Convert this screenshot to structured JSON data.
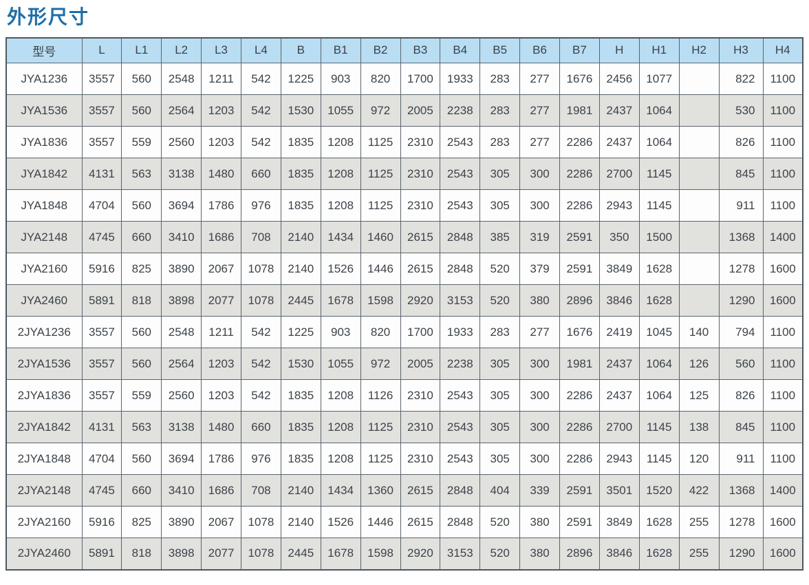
{
  "page": {
    "title": "外形尺寸"
  },
  "colors": {
    "title_text": "#1d6ea6",
    "header_background": "#b9ddf2",
    "row_alternate_background": "#e1e1de",
    "row_background": "#fdfdfd",
    "cell_border": "#5a646c",
    "body_text": "#3d4349"
  },
  "table": {
    "columns": [
      "型号",
      "L",
      "L1",
      "L2",
      "L3",
      "L4",
      "B",
      "B1",
      "B2",
      "B3",
      "B4",
      "B5",
      "B6",
      "B7",
      "H",
      "H1",
      "H2",
      "H3",
      "H4"
    ],
    "rows": [
      [
        "JYA1236",
        "3557",
        "560",
        "2548",
        "1211",
        "542",
        "1225",
        "903",
        "820",
        "1700",
        "1933",
        "283",
        "277",
        "1676",
        "2456",
        "1077",
        "",
        "822",
        "1100"
      ],
      [
        "JYA1536",
        "3557",
        "560",
        "2564",
        "1203",
        "542",
        "1530",
        "1055",
        "972",
        "2005",
        "2238",
        "283",
        "277",
        "1981",
        "2437",
        "1064",
        "",
        "530",
        "1100"
      ],
      [
        "JYA1836",
        "3557",
        "559",
        "2560",
        "1203",
        "542",
        "1835",
        "1208",
        "1125",
        "2310",
        "2543",
        "283",
        "277",
        "2286",
        "2437",
        "1064",
        "",
        "826",
        "1100"
      ],
      [
        "JYA1842",
        "4131",
        "563",
        "3138",
        "1480",
        "660",
        "1835",
        "1208",
        "1125",
        "2310",
        "2543",
        "305",
        "300",
        "2286",
        "2700",
        "1145",
        "",
        "845",
        "1100"
      ],
      [
        "JYA1848",
        "4704",
        "560",
        "3694",
        "1786",
        "976",
        "1835",
        "1208",
        "1125",
        "2310",
        "2543",
        "305",
        "300",
        "2286",
        "2943",
        "1145",
        "",
        "911",
        "1100"
      ],
      [
        "JYA2148",
        "4745",
        "660",
        "3410",
        "1686",
        "708",
        "2140",
        "1434",
        "1460",
        "2615",
        "2848",
        "385",
        "319",
        "2591",
        "350",
        "1500",
        "",
        "1368",
        "1400"
      ],
      [
        "JYA2160",
        "5916",
        "825",
        "3890",
        "2067",
        "1078",
        "2140",
        "1526",
        "1446",
        "2615",
        "2848",
        "520",
        "379",
        "2591",
        "3849",
        "1628",
        "",
        "1278",
        "1600"
      ],
      [
        "JYA2460",
        "5891",
        "818",
        "3898",
        "2077",
        "1078",
        "2445",
        "1678",
        "1598",
        "2920",
        "3153",
        "520",
        "380",
        "2896",
        "3846",
        "1628",
        "",
        "1290",
        "1600"
      ],
      [
        "2JYA1236",
        "3557",
        "560",
        "2548",
        "1211",
        "542",
        "1225",
        "903",
        "820",
        "1700",
        "1933",
        "283",
        "277",
        "1676",
        "2419",
        "1045",
        "140",
        "794",
        "1100"
      ],
      [
        "2JYA1536",
        "3557",
        "560",
        "2564",
        "1203",
        "542",
        "1530",
        "1055",
        "972",
        "2005",
        "2238",
        "305",
        "300",
        "1981",
        "2437",
        "1064",
        "126",
        "560",
        "1100"
      ],
      [
        "2JYA1836",
        "3557",
        "559",
        "2560",
        "1203",
        "542",
        "1835",
        "1208",
        "1126",
        "2310",
        "2543",
        "305",
        "300",
        "2286",
        "2437",
        "1064",
        "125",
        "826",
        "1100"
      ],
      [
        "2JYA1842",
        "4131",
        "563",
        "3138",
        "1480",
        "660",
        "1835",
        "1208",
        "1125",
        "2310",
        "2543",
        "305",
        "300",
        "2286",
        "2700",
        "1145",
        "138",
        "845",
        "1100"
      ],
      [
        "2JYA1848",
        "4704",
        "560",
        "3694",
        "1786",
        "976",
        "1835",
        "1208",
        "1125",
        "2310",
        "2543",
        "305",
        "300",
        "2286",
        "2943",
        "1145",
        "120",
        "911",
        "1100"
      ],
      [
        "2JYA2148",
        "4745",
        "660",
        "3410",
        "1686",
        "708",
        "2140",
        "1434",
        "1360",
        "2615",
        "2848",
        "404",
        "339",
        "2591",
        "3501",
        "1520",
        "422",
        "1368",
        "1400"
      ],
      [
        "2JYA2160",
        "5916",
        "825",
        "3890",
        "2067",
        "1078",
        "2140",
        "1526",
        "1446",
        "2615",
        "2848",
        "520",
        "380",
        "2591",
        "3849",
        "1628",
        "255",
        "1278",
        "1600"
      ],
      [
        "2JYA2460",
        "5891",
        "818",
        "3898",
        "2077",
        "1078",
        "2445",
        "1678",
        "1598",
        "2920",
        "3153",
        "520",
        "380",
        "2896",
        "3846",
        "1628",
        "255",
        "1290",
        "1600"
      ]
    ],
    "right_aligned_column_index": 17
  }
}
